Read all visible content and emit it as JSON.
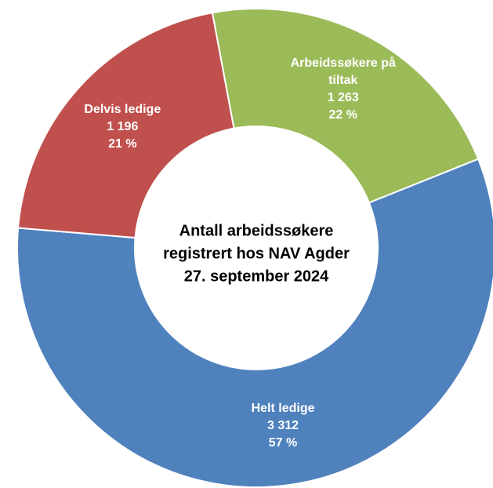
{
  "chart_data": {
    "type": "donut",
    "title": "Antall arbeidssøkere registrert hos NAV Agder 27. september 2024",
    "categories": [
      "Arbeidssøkere på tiltak",
      "Helt ledige",
      "Delvis ledige"
    ],
    "values": [
      1263,
      3312,
      1196
    ],
    "value_labels": [
      "1 263",
      "3 312",
      "1 196"
    ],
    "percentages": [
      22,
      57,
      21
    ],
    "percentage_labels": [
      "22 %",
      "57 %",
      "21 %"
    ],
    "colors": [
      "#9bbb59",
      "#4f81bd",
      "#c0504d"
    ]
  }
}
